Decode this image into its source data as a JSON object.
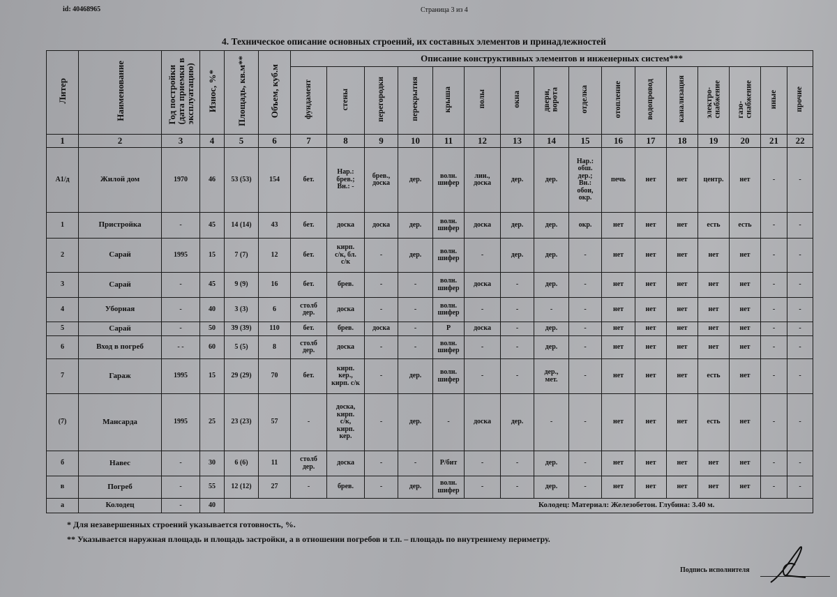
{
  "header": {
    "doc_id": "id: 40468965",
    "page": "Страница 3 из 4",
    "title": "4. Техническое описание основных строений, их составных элементов и принадлежностей"
  },
  "table": {
    "group_header": "Описание конструктивных элементов и инженерных систем***",
    "columns": [
      "Литер",
      "Наименование",
      "Год постройки\n(дата приемки в\nэксплуатацию)",
      "Износ, %*",
      "Площадь, кв.м**",
      "Объем, куб.м",
      "фундамент",
      "стены",
      "перегородки",
      "перекрытия",
      "крыша",
      "полы",
      "окна",
      "двери,\nворота",
      "отделка",
      "отопление",
      "водопровод",
      "канализация",
      "электро-\nснабжение",
      "газо-\nснабжение",
      "иные",
      "прочие"
    ],
    "column_numbers": [
      "1",
      "2",
      "3",
      "4",
      "5",
      "6",
      "7",
      "8",
      "9",
      "10",
      "11",
      "12",
      "13",
      "14",
      "15",
      "16",
      "17",
      "18",
      "19",
      "20",
      "21",
      "22"
    ],
    "rows": [
      [
        "А1/д",
        "Жилой дом",
        "1970",
        "46",
        "53 (53)",
        "154",
        "бет.",
        "Нар.:\nбрев.;\nВн.: -",
        "брев.,\nдоска",
        "дер.",
        "волн.\nшифер",
        "лин.,\nдоска",
        "дер.",
        "дер.",
        "Нар.:\nобш.\nдер.;\nВн.:\nобои,\nокр.",
        "печь",
        "нет",
        "нет",
        "центр.",
        "нет",
        "-",
        "-"
      ],
      [
        "1",
        "Пристройка",
        "-",
        "45",
        "14 (14)",
        "43",
        "бет.",
        "доска",
        "доска",
        "дер.",
        "волн.\nшифер",
        "доска",
        "дер.",
        "дер.",
        "окр.",
        "нет",
        "нет",
        "нет",
        "есть",
        "есть",
        "-",
        "-"
      ],
      [
        "2",
        "Сарай",
        "1995",
        "15",
        "7 (7)",
        "12",
        "бет.",
        "кирп.\nс/к, бл.\nс/к",
        "-",
        "дер.",
        "волн.\nшифер",
        "-",
        "дер.",
        "дер.",
        "-",
        "нет",
        "нет",
        "нет",
        "нет",
        "нет",
        "-",
        "-"
      ],
      [
        "3",
        "Сарай",
        "-",
        "45",
        "9 (9)",
        "16",
        "бет.",
        "брев.",
        "-",
        "-",
        "волн.\nшифер",
        "доска",
        "-",
        "дер.",
        "-",
        "нет",
        "нет",
        "нет",
        "нет",
        "нет",
        "-",
        "-"
      ],
      [
        "4",
        "Уборная",
        "-",
        "40",
        "3 (3)",
        "6",
        "столб\nдер.",
        "доска",
        "-",
        "-",
        "волн.\nшифер",
        "-",
        "-",
        "-",
        "-",
        "нет",
        "нет",
        "нет",
        "нет",
        "нет",
        "-",
        "-"
      ],
      [
        "5",
        "Сарай",
        "-",
        "50",
        "39 (39)",
        "110",
        "бет.",
        "брев.",
        "доска",
        "-",
        "Р",
        "доска",
        "-",
        "дер.",
        "-",
        "нет",
        "нет",
        "нет",
        "нет",
        "нет",
        "-",
        "-"
      ],
      [
        "6",
        "Вход в погреб",
        "- -",
        "60",
        "5 (5)",
        "8",
        "столб\nдер.",
        "доска",
        "-",
        "-",
        "волн.\nшифер",
        "-",
        "-",
        "дер.",
        "-",
        "нет",
        "нет",
        "нет",
        "нет",
        "нет",
        "-",
        "-"
      ],
      [
        "7",
        "Гараж",
        "1995",
        "15",
        "29 (29)",
        "70",
        "бет.",
        "кирп.\nкер.,\nкирп. с/к",
        "-",
        "дер.",
        "волн.\nшифер",
        "-",
        "-",
        "дер.,\nмет.",
        "-",
        "нет",
        "нет",
        "нет",
        "есть",
        "нет",
        "-",
        "-"
      ],
      [
        "(7)",
        "Мансарда",
        "1995",
        "25",
        "23 (23)",
        "57",
        "-",
        "доска,\nкирп.\nс/к,\nкирп.\nкер.",
        "-",
        "дер.",
        "-",
        "доска",
        "дер.",
        "-",
        "-",
        "нет",
        "нет",
        "нет",
        "есть",
        "нет",
        "-",
        "-"
      ],
      [
        "б",
        "Навес",
        "-",
        "30",
        "6 (6)",
        "11",
        "столб\nдер.",
        "доска",
        "-",
        "-",
        "Р/бит",
        "-",
        "-",
        "дер.",
        "-",
        "нет",
        "нет",
        "нет",
        "нет",
        "нет",
        "-",
        "-"
      ],
      [
        "в",
        "Погреб",
        "-",
        "55",
        "12 (12)",
        "27",
        "-",
        "брев.",
        "-",
        "дер.",
        "волн.\nшифер",
        "-",
        "-",
        "дер.",
        "-",
        "нет",
        "нет",
        "нет",
        "нет",
        "нет",
        "-",
        "-"
      ]
    ],
    "well_row": {
      "cells": [
        "а",
        "Колодец",
        "-",
        "40"
      ],
      "note": "Колодец: Материал: Железобетон. Глубина: 3.40 м."
    }
  },
  "footnotes": [
    "* Для незавершенных строений указывается готовность, %.",
    "** Указывается наружная площадь и площадь застройки, а в отношении погребов и т.п. – площадь по внутреннему периметру."
  ],
  "signature_label": "Подпись исполнителя"
}
